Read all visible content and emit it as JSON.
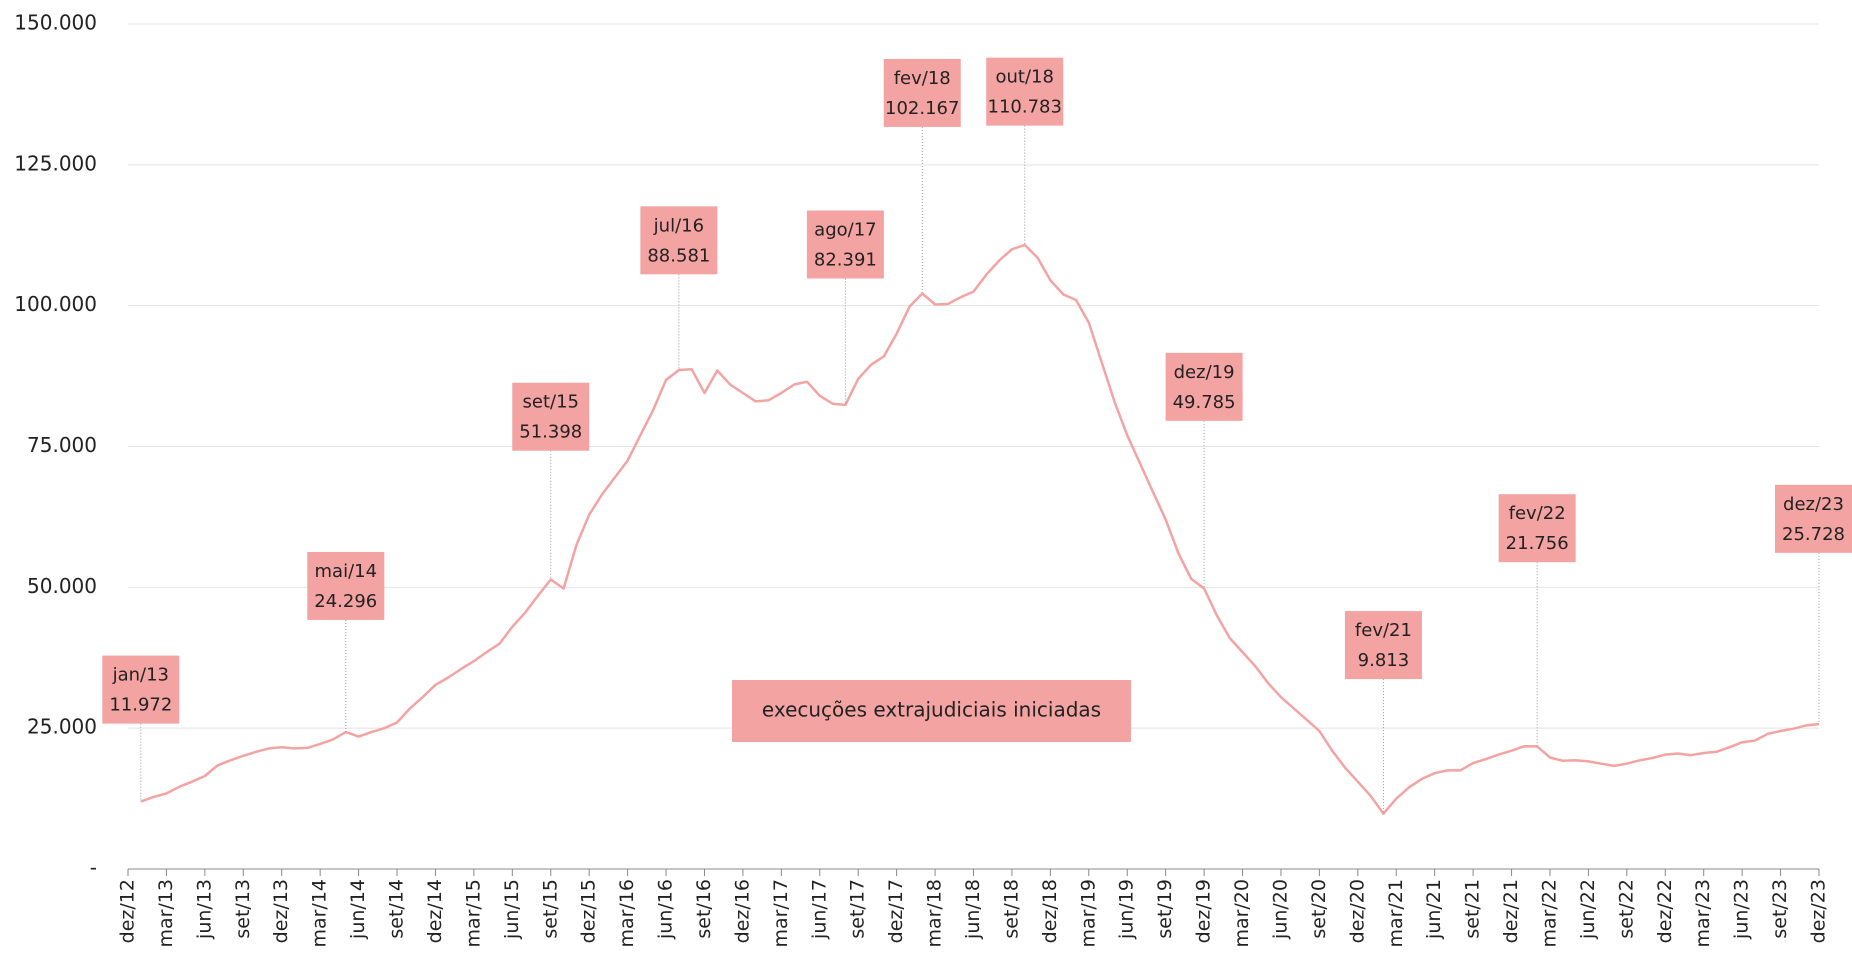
{
  "chart_data": {
    "type": "line",
    "categories": [
      "dez/12",
      null,
      null,
      "mar/13",
      null,
      null,
      "jun/13",
      null,
      null,
      "set/13",
      null,
      null,
      "dez/13",
      null,
      null,
      "mar/14",
      null,
      null,
      "jun/14",
      null,
      null,
      "set/14",
      null,
      null,
      "dez/14",
      null,
      null,
      "mar/15",
      null,
      null,
      "jun/15",
      null,
      null,
      "set/15",
      null,
      null,
      "dez/15",
      null,
      null,
      "mar/16",
      null,
      null,
      "jun/16",
      null,
      null,
      "set/16",
      null,
      null,
      "dez/16",
      null,
      null,
      "mar/17",
      null,
      null,
      "jun/17",
      null,
      null,
      "set/17",
      null,
      null,
      "dez/17",
      null,
      null,
      "mar/18",
      null,
      null,
      "jun/18",
      null,
      null,
      "set/18",
      null,
      null,
      "dez/18",
      null,
      null,
      "mar/19",
      null,
      null,
      "jun/19",
      null,
      null,
      "set/19",
      null,
      null,
      "dez/19",
      null,
      null,
      "mar/20",
      null,
      null,
      "jun/20",
      null,
      null,
      "set/20",
      null,
      null,
      "dez/20",
      null,
      null,
      "mar/21",
      null,
      null,
      "jun/21",
      null,
      null,
      "set/21",
      null,
      null,
      "dez/21",
      null,
      null,
      "mar/22",
      null,
      null,
      "jun/22",
      null,
      null,
      "set/22",
      null,
      null,
      "dez/22",
      null,
      null,
      "mar/23",
      null,
      null,
      "jun/23",
      null,
      null,
      "set/23",
      null,
      null,
      "dez/23"
    ],
    "series": [
      {
        "name": "execuções extrajudiciais iniciadas",
        "color": "#f4a3a3",
        "values": [
          null,
          11972,
          12800,
          13400,
          14600,
          15500,
          16500,
          18400,
          19300,
          20100,
          20800,
          21400,
          21600,
          21400,
          21500,
          22200,
          23000,
          24296,
          23500,
          24300,
          25000,
          26000,
          28500,
          30500,
          32700,
          34000,
          35500,
          36900,
          38500,
          40000,
          43000,
          45500,
          48500,
          51398,
          49800,
          57500,
          62900,
          66500,
          69500,
          72500,
          77000,
          81500,
          86800,
          88581,
          88700,
          84500,
          88500,
          86000,
          84500,
          83000,
          83200,
          84500,
          86000,
          86500,
          84000,
          82600,
          82391,
          87000,
          89500,
          91000,
          95000,
          99800,
          102167,
          100200,
          100300,
          101500,
          102500,
          105500,
          108000,
          110000,
          110783,
          108500,
          104500,
          102000,
          101000,
          97000,
          90000,
          83000,
          77000,
          72000,
          67000,
          62000,
          56000,
          51500,
          49785,
          45000,
          41000,
          38500,
          36000,
          33000,
          30500,
          28500,
          26500,
          24500,
          21000,
          18000,
          15500,
          13000,
          9813,
          12500,
          14500,
          16000,
          17000,
          17500,
          17500,
          18800,
          19500,
          20300,
          21000,
          21800,
          21756,
          19800,
          19200,
          19300,
          19100,
          18700,
          18300,
          18700,
          19300,
          19700,
          20300,
          20500,
          20200,
          20600,
          20800,
          21600,
          22500,
          22800,
          24000,
          24500,
          24900,
          25500,
          25728
        ]
      }
    ],
    "ylim": [
      0,
      150000
    ],
    "yticks": [
      {
        "value": 0,
        "label": "-"
      },
      {
        "value": 25000,
        "label": "25.000"
      },
      {
        "value": 50000,
        "label": "50.000"
      },
      {
        "value": 75000,
        "label": "75.000"
      },
      {
        "value": 100000,
        "label": "100.000"
      },
      {
        "value": 125000,
        "label": "125.000"
      },
      {
        "value": 150000,
        "label": "150.000"
      }
    ],
    "grid": true,
    "annotations": [
      {
        "text": "jan/13",
        "value": 11972,
        "value_label": "11.972"
      },
      {
        "text": "mai/14",
        "value": 24296,
        "value_label": "24.296"
      },
      {
        "text": "set/15",
        "value": 51398,
        "value_label": "51.398"
      },
      {
        "text": "jul/16",
        "value": 88581,
        "value_label": "88.581"
      },
      {
        "text": "ago/17",
        "value": 82391,
        "value_label": "82.391"
      },
      {
        "text": "fev/18",
        "value": 102167,
        "value_label": "102.167"
      },
      {
        "text": "out/18",
        "value": 110783,
        "value_label": "110.783"
      },
      {
        "text": "dez/19",
        "value": 49785,
        "value_label": "49.785"
      },
      {
        "text": "fev/21",
        "value": 9813,
        "value_label": "9.813"
      },
      {
        "text": "fev/22",
        "value": 21756,
        "value_label": "21.756"
      },
      {
        "text": "dez/23",
        "value": 25728,
        "value_label": "25.728"
      }
    ]
  }
}
